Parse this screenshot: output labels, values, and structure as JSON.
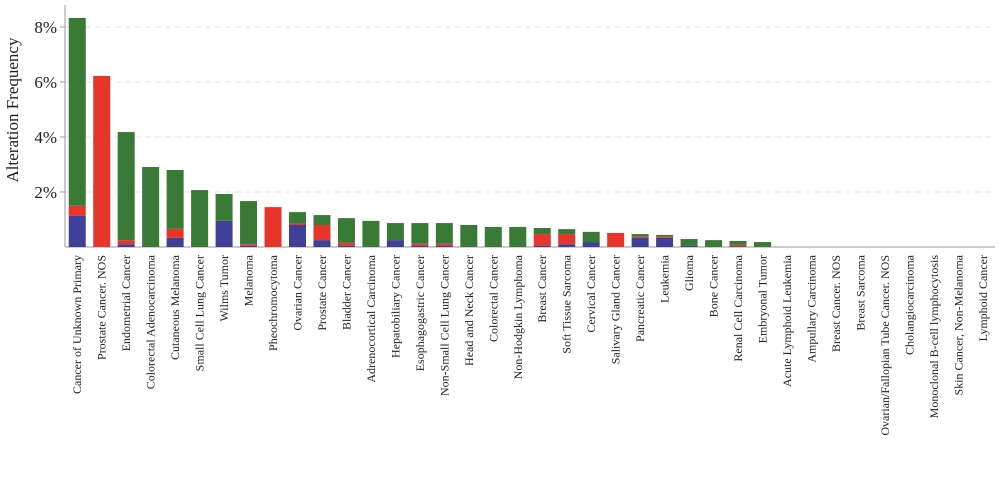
{
  "chart_data": {
    "type": "stacked_bar",
    "y_label": "Alteration Frequency",
    "categories": [
      "Cancer of Unknown Primary",
      "Prostate Cancer. NOS",
      "Endometrial Cancer",
      "Colorectal Adenocarcinoma",
      "Cutaneous Melanoma",
      "Small Cell Lung Cancer",
      "Wilms Tumor",
      "Melanoma",
      "Pheochromocytoma",
      "Ovarian Cancer",
      "Prostate Cancer",
      "Bladder Cancer",
      "Adrenocortical Carcinoma",
      "Hepatobiliary Cancer",
      "Esophagogastric Cancer",
      "Non-Small Cell Lung Cancer",
      "Head and Neck Cancer",
      "Colorectal Cancer",
      "Non-Hodgkin Lymphoma",
      "Breast Cancer",
      "Soft Tissue Sarcoma",
      "Cervical Cancer",
      "Salivary Gland Cancer",
      "Pancreatic Cancer",
      "Leukemia",
      "Glioma",
      "Bone Cancer",
      "Renal Cell Carcinoma",
      "Embryonal Tumor",
      "Acute Lymphoid Leukemia",
      "Ampullary Carcinoma",
      "Breast Cancer. NOS",
      "Breast Sarcoma",
      "Ovarian/Fallopian Tube Cancer. NOS",
      "Cholangiocarcinoma",
      "Monoclonal B-cell lymphocytosis",
      "Skin Cancer, Non-Melanoma",
      "Lymphoid Cancer"
    ],
    "series": [
      {
        "color": "#3f3f97",
        "values": [
          1.13,
          0,
          0.1,
          0,
          0.33,
          0,
          0.95,
          0.05,
          0,
          0.8,
          0.25,
          0.05,
          0,
          0.25,
          0.05,
          0.05,
          0,
          0,
          0,
          0.05,
          0.1,
          0.18,
          0,
          0.33,
          0.33,
          0.05,
          0,
          0.03,
          0,
          0,
          0,
          0,
          0,
          0,
          0,
          0,
          0,
          0
        ]
      },
      {
        "color": "#e8352b",
        "values": [
          0.37,
          6.22,
          0.15,
          0,
          0.33,
          0,
          0,
          0.05,
          1.45,
          0.05,
          0.55,
          0.1,
          0,
          0,
          0.07,
          0.07,
          0,
          0,
          0,
          0.42,
          0.37,
          0,
          0.51,
          0.04,
          0.04,
          0,
          0,
          0.05,
          0,
          0,
          0,
          0,
          0,
          0,
          0,
          0,
          0,
          0
        ]
      },
      {
        "color": "#3a7a37",
        "values": [
          6.83,
          0,
          3.93,
          2.91,
          2.14,
          2.07,
          0.98,
          1.57,
          0,
          0.42,
          0.36,
          0.9,
          0.95,
          0.62,
          0.75,
          0.75,
          0.8,
          0.73,
          0.73,
          0.22,
          0.18,
          0.37,
          0,
          0.1,
          0.07,
          0.24,
          0.25,
          0.14,
          0.18,
          0,
          0,
          0,
          0,
          0,
          0,
          0,
          0,
          0
        ]
      }
    ],
    "ylim": [
      0,
      8.8
    ],
    "yticks": [
      {
        "value": 2,
        "label": "2%"
      },
      {
        "value": 4,
        "label": "4%"
      },
      {
        "value": 6,
        "label": "6%"
      },
      {
        "value": 8,
        "label": "8%"
      }
    ],
    "grid": true
  }
}
